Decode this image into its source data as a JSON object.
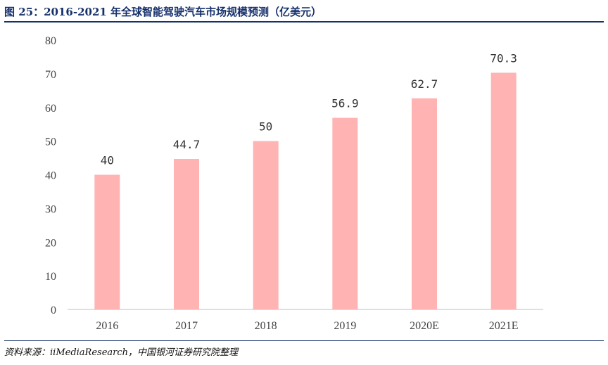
{
  "header": {
    "title": "图 25：2016-2021 年全球智能驾驶汽车市场规模预测（亿美元）"
  },
  "footer": {
    "source": "资料来源：iiMediaResearch，中国银河证券研究院整理"
  },
  "colors": {
    "bar": "#ffb3b3",
    "title": "#16306b",
    "axis": "#bfbfbf"
  },
  "chart_data": {
    "type": "bar",
    "categories": [
      "2016",
      "2017",
      "2018",
      "2019",
      "2020E",
      "2021E"
    ],
    "values": [
      40,
      44.7,
      50,
      56.9,
      62.7,
      70.3
    ],
    "value_labels": [
      "40",
      "44.7",
      "50",
      "56.9",
      "62.7",
      "70.3"
    ],
    "title": "",
    "xlabel": "",
    "ylabel": "",
    "ylim": [
      0,
      80
    ],
    "yticks": [
      "0",
      "10",
      "20",
      "30",
      "40",
      "50",
      "60",
      "70",
      "80"
    ],
    "grid": false,
    "legend": "none"
  }
}
